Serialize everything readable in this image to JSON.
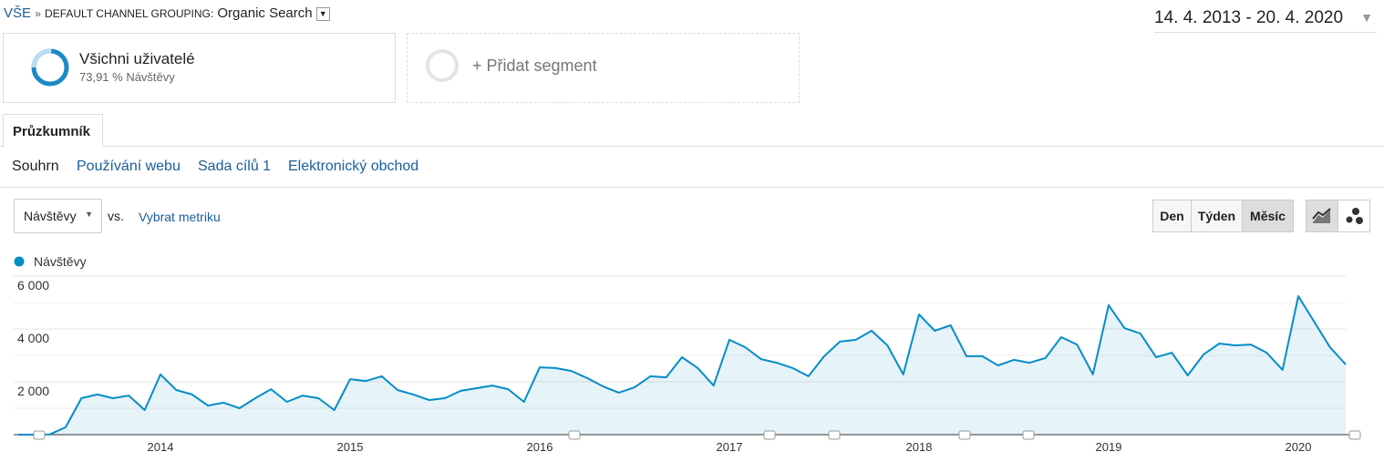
{
  "breadcrumb": {
    "root": "VŠE",
    "separator": "»",
    "dimension": "DEFAULT CHANNEL GROUPING:",
    "value": "Organic Search"
  },
  "date_range": "14. 4. 2013 - 20. 4. 2020",
  "segments": {
    "active": {
      "name": "Všichni uživatelé",
      "detail": "73,91 % Návštěvy"
    },
    "add": "+ Přidat segment"
  },
  "tab": "Průzkumník",
  "subtabs": [
    "Souhrn",
    "Používání webu",
    "Sada cílů 1",
    "Elektronický obchod"
  ],
  "controls": {
    "metric": "Návštěvy",
    "vs": "vs.",
    "select_metric": "Vybrat metriku",
    "periods": [
      "Den",
      "Týden",
      "Měsíc"
    ]
  },
  "chart_data": {
    "type": "area",
    "categories": [
      null,
      null,
      null,
      null,
      null,
      null,
      null,
      null,
      null,
      "2014",
      null,
      null,
      null,
      null,
      null,
      null,
      null,
      null,
      null,
      null,
      null,
      "2015",
      null,
      null,
      null,
      null,
      null,
      null,
      null,
      null,
      null,
      null,
      null,
      "2016",
      null,
      null,
      null,
      null,
      null,
      null,
      null,
      null,
      null,
      null,
      null,
      "2017",
      null,
      null,
      null,
      null,
      null,
      null,
      null,
      null,
      null,
      null,
      null,
      "2018",
      null,
      null,
      null,
      null,
      null,
      null,
      null,
      null,
      null,
      null,
      null,
      "2019",
      null,
      null,
      null,
      null,
      null,
      null,
      null,
      null,
      null,
      null,
      null,
      "2020",
      null,
      null,
      null
    ],
    "series": [
      {
        "name": "Návštěvy",
        "color": "#058dc7",
        "values": [
          0,
          0,
          10,
          280,
          1380,
          1520,
          1380,
          1480,
          930,
          2280,
          1690,
          1520,
          1100,
          1210,
          1000,
          1380,
          1720,
          1240,
          1480,
          1380,
          930,
          2100,
          2030,
          2210,
          1690,
          1520,
          1310,
          1380,
          1660,
          1760,
          1860,
          1720,
          1240,
          2550,
          2520,
          2410,
          2140,
          1830,
          1590,
          1790,
          2210,
          2170,
          2930,
          2520,
          1860,
          3590,
          3310,
          2860,
          2720,
          2520,
          2210,
          2970,
          3520,
          3590,
          3930,
          3380,
          2280,
          4550,
          3930,
          4140,
          2970,
          2970,
          2620,
          2830,
          2720,
          2900,
          3690,
          3410,
          2280,
          4900,
          4030,
          3830,
          2930,
          3100,
          2240,
          3030,
          3450,
          3380,
          3410,
          3100,
          2450,
          5240,
          4280,
          3310,
          2660
        ]
      }
    ],
    "ylim": [
      0,
      6000
    ],
    "yticks": [
      {
        "value": 2000,
        "label": "2 000"
      },
      {
        "value": 4000,
        "label": "4 000"
      },
      {
        "value": 6000,
        "label": "6 000"
      }
    ],
    "grid": true
  }
}
